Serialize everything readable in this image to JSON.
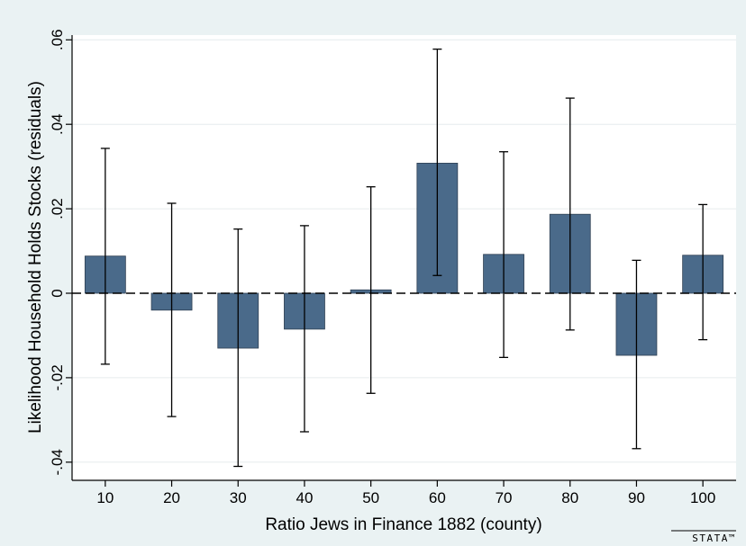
{
  "chart_data": {
    "type": "bar",
    "xlabel": "Ratio Jews in Finance 1882 (county)",
    "ylabel": "Likelihood Household Holds Stocks (residuals)",
    "categories": [
      "10",
      "20",
      "30",
      "40",
      "50",
      "60",
      "70",
      "80",
      "90",
      "100"
    ],
    "values": [
      0.0088,
      -0.004,
      -0.013,
      -0.0085,
      0.0008,
      0.0308,
      0.0092,
      0.0187,
      -0.0147,
      0.009
    ],
    "error_low": [
      -0.0168,
      -0.0292,
      -0.041,
      -0.0328,
      -0.0237,
      0.0042,
      -0.0152,
      -0.0087,
      -0.0368,
      -0.011
    ],
    "error_high": [
      0.0343,
      0.0213,
      0.0152,
      0.016,
      0.0252,
      0.0578,
      0.0335,
      0.0462,
      0.0078,
      0.021
    ],
    "yticks": [
      -0.04,
      -0.02,
      0,
      0.02,
      0.04,
      0.06
    ],
    "ytick_labels": [
      "-.04",
      "-.02",
      "0",
      ".02",
      ".04",
      ".06"
    ],
    "ylim": [
      -0.0435,
      0.0605
    ],
    "reference_line": 0,
    "grid": true,
    "bar_color": "#4a6a8a",
    "plot_background": "#ffffff",
    "page_background": "#eaf2f3",
    "logo_text": "STATA™"
  }
}
